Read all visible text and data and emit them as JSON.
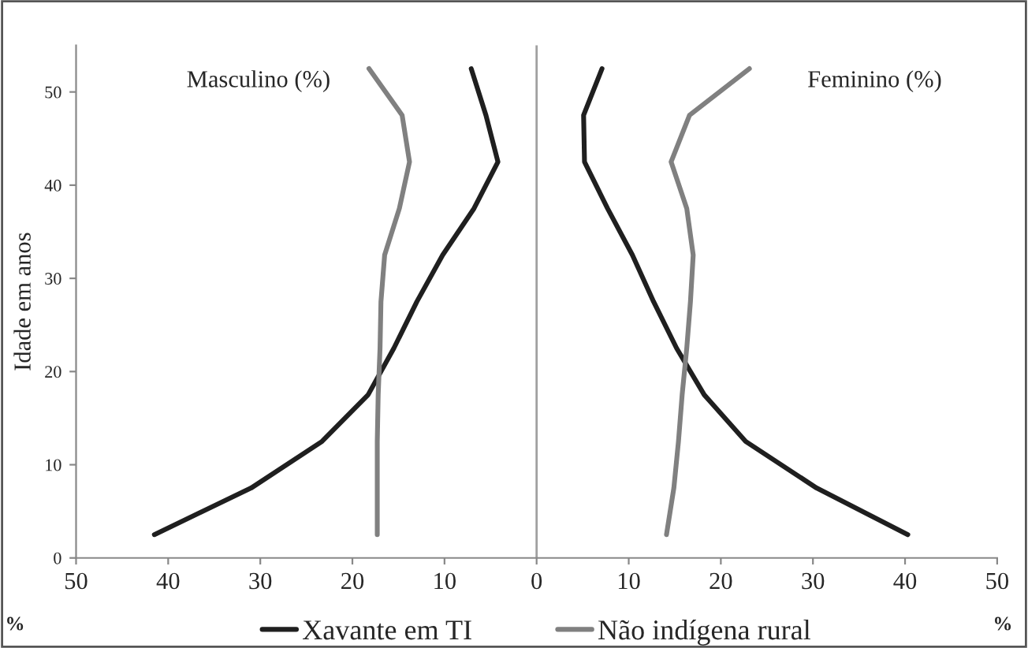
{
  "chart_data": {
    "type": "line",
    "ylabel": "Idade em anos",
    "annotations": [
      "Masculino (%)",
      "Feminino (%)",
      "%",
      "%"
    ],
    "series": [
      {
        "name": "Xavante em TI",
        "color": "#1f1f1f",
        "x": [
          -41.5,
          -31,
          -23.3,
          -18.3,
          -15.5,
          -13.0,
          -10.2,
          -6.8,
          -4.2,
          -5.5,
          -7.1
        ],
        "values": [
          2.5,
          7.5,
          12.5,
          17.5,
          22.5,
          27.5,
          32.5,
          37.5,
          42.5,
          47.5,
          52.5
        ]
      },
      {
        "name": "Não indígena rural",
        "color": "#808080",
        "x": [
          -17.3,
          -17.3,
          -17.3,
          -17.2,
          -17.0,
          -16.9,
          -16.5,
          -14.9,
          -13.8,
          -14.6,
          -18.2
        ],
        "values": [
          2.5,
          7.5,
          12.5,
          17.5,
          22.5,
          27.5,
          32.5,
          37.5,
          42.5,
          47.5,
          52.5
        ]
      },
      {
        "color": "#1f1f1f",
        "x": [
          40.3,
          30.4,
          22.7,
          18.2,
          15.2,
          12.7,
          10.4,
          7.7,
          5.2,
          5.1,
          7.1
        ],
        "values": [
          2.5,
          7.5,
          12.5,
          17.5,
          22.5,
          27.5,
          32.5,
          37.5,
          42.5,
          47.5,
          52.5
        ]
      },
      {
        "color": "#808080",
        "x": [
          14.1,
          14.9,
          15.4,
          15.8,
          16.3,
          16.7,
          17.0,
          16.3,
          14.6,
          16.6,
          23.1
        ],
        "values": [
          2.5,
          7.5,
          12.5,
          17.5,
          22.5,
          27.5,
          32.5,
          37.5,
          42.5,
          47.5,
          52.5
        ]
      }
    ],
    "xlim": [
      -50,
      50
    ],
    "xticks": [
      {
        "value": -50,
        "label": "50"
      },
      {
        "value": -40,
        "label": "40"
      },
      {
        "value": -30,
        "label": "30"
      },
      {
        "value": -20,
        "label": "20"
      },
      {
        "value": -10,
        "label": "10"
      },
      0,
      10,
      20,
      30,
      40,
      50
    ],
    "ylim": [
      0,
      55
    ],
    "yticks": [
      0,
      10,
      20,
      30,
      40,
      50
    ],
    "ref_lines": [
      {
        "axis": "x",
        "value": 0,
        "color": "#a0a0a0"
      }
    ],
    "grid": false,
    "legend": "bottom",
    "marker": "none",
    "line_style": "solid"
  }
}
